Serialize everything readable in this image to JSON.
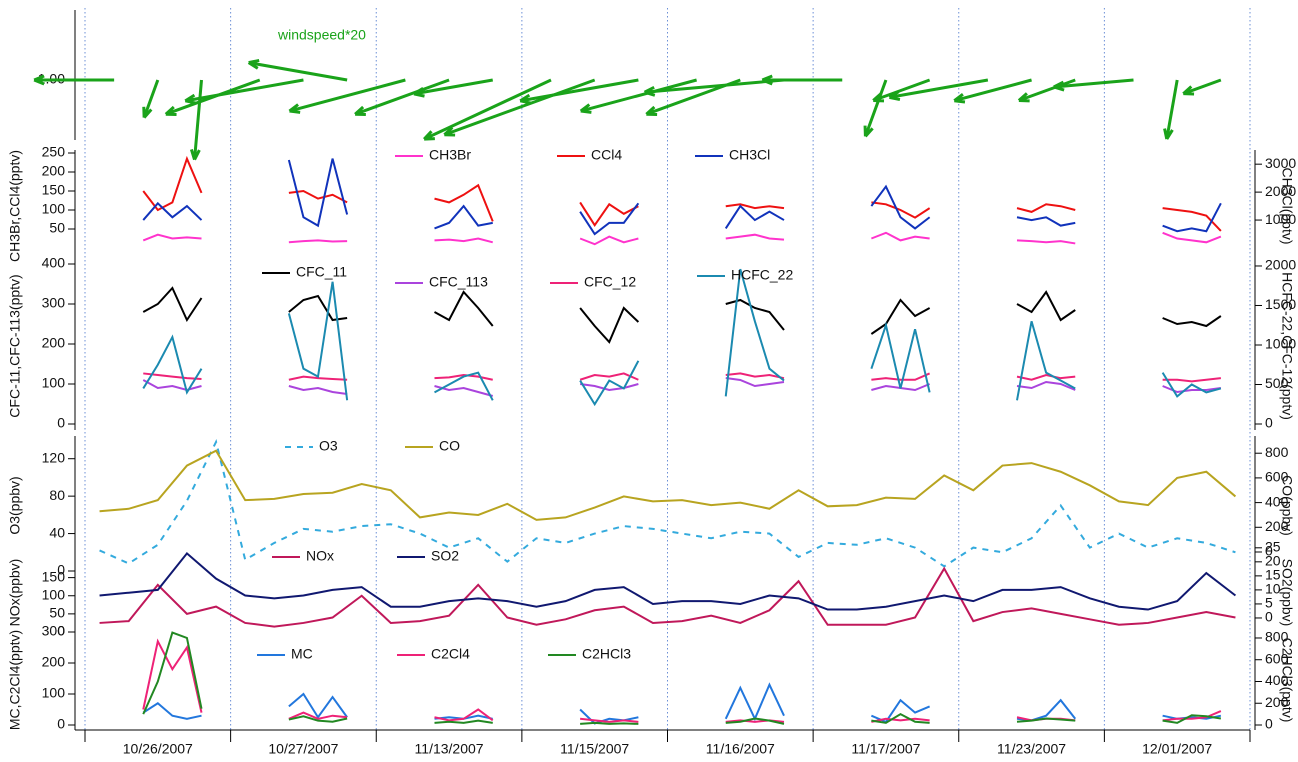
{
  "chart_data": [
    {
      "type": "vector",
      "annotation": "windspeed*20",
      "color": "#1aa31a",
      "x": [
        0.2,
        0.5,
        0.8,
        1.2,
        1.5,
        1.8,
        2.2,
        2.5,
        2.8,
        3.2,
        3.5,
        3.8,
        4.2,
        4.5,
        4.8,
        5.2,
        5.5,
        5.8,
        6.2,
        6.5,
        6.8,
        7.2,
        7.5,
        7.8
      ],
      "speed": [
        4,
        2,
        4,
        5,
        6,
        5,
        6,
        5,
        4,
        7,
        8,
        6,
        6,
        5,
        7,
        4,
        3,
        3,
        5,
        4,
        3,
        4,
        3,
        2
      ],
      "direction": [
        180,
        250,
        265,
        200,
        190,
        170,
        195,
        200,
        190,
        205,
        200,
        190,
        195,
        200,
        185,
        180,
        250,
        200,
        190,
        195,
        200,
        185,
        260,
        200
      ],
      "ylim": [
        0,
        2
      ],
      "yticks": [
        {
          "value": 1,
          "label": "1.00"
        }
      ]
    },
    {
      "type": "line",
      "ylabel": "CH3Br,CCl4(pptv)",
      "y2label": "CH3Cl(pptv)",
      "ylim": [
        0,
        250
      ],
      "yticks": [
        50,
        100,
        150,
        200,
        250
      ],
      "y2lim": [
        0,
        3400
      ],
      "y2ticks": [
        1000,
        2000,
        3000
      ],
      "x": [
        0.4,
        0.5,
        0.6,
        0.7,
        0.8,
        1,
        1.4,
        1.5,
        1.6,
        1.7,
        1.8,
        2,
        2.4,
        2.5,
        2.6,
        2.7,
        2.8,
        3,
        3.4,
        3.5,
        3.6,
        3.7,
        3.8,
        4,
        4.4,
        4.5,
        4.6,
        4.7,
        4.8,
        5,
        5.4,
        5.5,
        5.6,
        5.7,
        5.8,
        6,
        6.4,
        6.5,
        6.6,
        6.7,
        6.8,
        7,
        7.4,
        7.5,
        7.6,
        7.7,
        7.8
      ],
      "series": [
        {
          "name": "CH3Br",
          "color": "#ff33cc",
          "values": [
            20,
            35,
            25,
            28,
            25,
            null,
            15,
            18,
            20,
            17,
            18,
            null,
            20,
            22,
            18,
            25,
            15,
            null,
            25,
            10,
            30,
            15,
            25,
            null,
            25,
            30,
            35,
            25,
            22,
            null,
            25,
            40,
            20,
            30,
            25,
            null,
            20,
            18,
            15,
            18,
            12,
            null,
            40,
            25,
            20,
            15,
            30
          ]
        },
        {
          "name": "CCl4",
          "color": "#ee1111",
          "values": [
            150,
            100,
            120,
            235,
            145,
            null,
            145,
            150,
            130,
            140,
            120,
            null,
            130,
            120,
            140,
            165,
            70,
            null,
            120,
            60,
            115,
            90,
            110,
            null,
            110,
            115,
            105,
            110,
            105,
            null,
            120,
            115,
            100,
            80,
            105,
            null,
            105,
            95,
            115,
            110,
            100,
            null,
            105,
            100,
            95,
            85,
            45
          ]
        },
        {
          "name": "CH3Cl",
          "color": "#1133bb",
          "axis": "y2",
          "values": [
            1000,
            1600,
            1100,
            1500,
            1000,
            null,
            3150,
            1100,
            800,
            3200,
            1200,
            null,
            700,
            900,
            1500,
            800,
            900,
            null,
            1300,
            500,
            900,
            900,
            1600,
            null,
            700,
            1500,
            1000,
            1300,
            1000,
            null,
            1500,
            2200,
            1100,
            700,
            1100,
            null,
            1100,
            1000,
            1100,
            800,
            900,
            null,
            800,
            600,
            700,
            600,
            1600
          ]
        }
      ]
    },
    {
      "type": "line",
      "ylabel": "CFC-11,CFC-113(pptv)",
      "y2label": "HCFC-22,CFC-12(pptv)",
      "ylim": [
        0,
        400
      ],
      "yticks": [
        0,
        100,
        200,
        300,
        400
      ],
      "y2lim": [
        0,
        2025
      ],
      "y2ticks": [
        0,
        500,
        1000,
        1500,
        2000
      ],
      "x": [
        0.4,
        0.5,
        0.6,
        0.7,
        0.8,
        1,
        1.4,
        1.5,
        1.6,
        1.7,
        1.8,
        2,
        2.4,
        2.5,
        2.6,
        2.7,
        2.8,
        3,
        3.4,
        3.5,
        3.6,
        3.7,
        3.8,
        4,
        4.4,
        4.5,
        4.6,
        4.7,
        4.8,
        5,
        5.4,
        5.5,
        5.6,
        5.7,
        5.8,
        6,
        6.4,
        6.5,
        6.6,
        6.7,
        6.8,
        7,
        7.4,
        7.5,
        7.6,
        7.7,
        7.8
      ],
      "series": [
        {
          "name": "CFC_11",
          "color": "#000000",
          "values": [
            280,
            300,
            340,
            260,
            315,
            null,
            280,
            310,
            320,
            260,
            265,
            null,
            280,
            260,
            330,
            290,
            245,
            null,
            290,
            245,
            205,
            290,
            255,
            null,
            300,
            310,
            290,
            280,
            235,
            null,
            225,
            250,
            310,
            270,
            290,
            null,
            300,
            280,
            330,
            260,
            285,
            null,
            265,
            250,
            255,
            245,
            270
          ]
        },
        {
          "name": "CFC_113",
          "color": "#aa44dd",
          "values": [
            110,
            90,
            95,
            85,
            95,
            null,
            95,
            85,
            90,
            80,
            75,
            null,
            95,
            85,
            90,
            80,
            70,
            null,
            100,
            95,
            85,
            90,
            100,
            null,
            115,
            110,
            95,
            100,
            105,
            null,
            85,
            95,
            90,
            85,
            100,
            null,
            95,
            90,
            105,
            100,
            85,
            null,
            95,
            80,
            85,
            85,
            90
          ]
        },
        {
          "name": "CFC_12",
          "color": "#ee2277",
          "axis": "y2",
          "values": [
            640,
            620,
            600,
            580,
            570,
            null,
            560,
            600,
            580,
            570,
            560,
            null,
            580,
            590,
            620,
            600,
            560,
            null,
            560,
            620,
            600,
            640,
            560,
            null,
            620,
            640,
            600,
            620,
            580,
            null,
            560,
            580,
            560,
            560,
            640,
            null,
            600,
            560,
            620,
            580,
            600,
            null,
            560,
            560,
            540,
            560,
            580
          ]
        },
        {
          "name": "HCFC_22",
          "color": "#1b8ab0",
          "axis": "y2",
          "values": [
            450,
            750,
            1100,
            400,
            700,
            null,
            1400,
            700,
            600,
            1800,
            300,
            null,
            400,
            500,
            600,
            650,
            300,
            null,
            550,
            250,
            550,
            450,
            800,
            null,
            350,
            1960,
            1300,
            700,
            550,
            null,
            700,
            1250,
            450,
            1200,
            400,
            null,
            300,
            1300,
            650,
            550,
            450,
            null,
            650,
            350,
            500,
            400,
            450
          ]
        }
      ]
    },
    {
      "type": "line",
      "ylabel": "O3(ppbv)",
      "y2label": "CO(ppbv)",
      "ylim": [
        0,
        140
      ],
      "yticks": [
        0,
        40,
        80,
        120
      ],
      "y2lim": [
        -154,
        907
      ],
      "y2ticks": [
        0,
        200,
        400,
        600,
        800
      ],
      "x": [
        0.1,
        0.3,
        0.5,
        0.7,
        0.9,
        1.1,
        1.3,
        1.5,
        1.7,
        1.9,
        2.1,
        2.3,
        2.5,
        2.7,
        2.9,
        3.1,
        3.3,
        3.5,
        3.7,
        3.9,
        4.1,
        4.3,
        4.5,
        4.7,
        4.9,
        5.1,
        5.3,
        5.5,
        5.7,
        5.9,
        6.1,
        6.3,
        6.5,
        6.7,
        6.9,
        7.1,
        7.3,
        7.5,
        7.7,
        7.9
      ],
      "series": [
        {
          "name": "O3",
          "color": "#33aadd",
          "dash": true,
          "values": [
            22,
            8,
            28,
            75,
            138,
            12,
            30,
            45,
            42,
            48,
            50,
            40,
            25,
            35,
            10,
            35,
            30,
            40,
            48,
            45,
            40,
            35,
            42,
            40,
            15,
            30,
            28,
            35,
            25,
            5,
            25,
            20,
            35,
            70,
            25,
            40,
            25,
            35,
            30,
            20
          ]
        },
        {
          "name": "CO",
          "color": "#b8a420",
          "axis": "y2",
          "values": [
            330,
            350,
            420,
            700,
            820,
            420,
            430,
            470,
            480,
            550,
            500,
            280,
            320,
            300,
            390,
            260,
            280,
            360,
            450,
            410,
            420,
            380,
            400,
            350,
            500,
            370,
            380,
            440,
            430,
            620,
            500,
            700,
            720,
            650,
            540,
            410,
            380,
            600,
            650,
            450
          ]
        }
      ]
    },
    {
      "type": "line",
      "ylabel": "NOx(ppbv)",
      "y2label": "SO2(ppbv)",
      "ylim": [
        0,
        240
      ],
      "yticks": [
        0,
        50,
        100,
        150
      ],
      "y2lim": [
        -5,
        26
      ],
      "y2ticks": [
        0,
        5,
        10,
        15,
        20,
        25
      ],
      "x": [
        0.1,
        0.3,
        0.5,
        0.7,
        0.9,
        1.1,
        1.3,
        1.5,
        1.7,
        1.9,
        2.1,
        2.3,
        2.5,
        2.7,
        2.9,
        3.1,
        3.3,
        3.5,
        3.7,
        3.9,
        4.1,
        4.3,
        4.5,
        4.7,
        4.9,
        5.1,
        5.3,
        5.5,
        5.7,
        5.9,
        6.1,
        6.3,
        6.5,
        6.7,
        6.9,
        7.1,
        7.3,
        7.5,
        7.7,
        7.9
      ],
      "series": [
        {
          "name": "NOx",
          "color": "#c0185a",
          "values": [
            25,
            30,
            130,
            50,
            70,
            25,
            15,
            25,
            40,
            100,
            25,
            30,
            45,
            130,
            40,
            20,
            35,
            60,
            70,
            25,
            30,
            45,
            25,
            60,
            140,
            20,
            20,
            20,
            40,
            175,
            30,
            55,
            65,
            50,
            35,
            20,
            25,
            40,
            55,
            40
          ]
        },
        {
          "name": "SO2",
          "color": "#101870",
          "axis": "y2",
          "values": [
            8,
            9,
            10,
            23,
            14,
            8,
            7,
            8,
            10,
            11,
            4,
            4,
            6,
            7,
            6,
            4,
            6,
            10,
            11,
            5,
            6,
            6,
            5,
            8,
            7,
            3,
            3,
            4,
            6,
            8,
            6,
            10,
            10,
            11,
            7,
            4,
            3,
            6,
            16,
            8
          ]
        }
      ]
    },
    {
      "type": "line",
      "ylabel": "MC,C2Cl4(pptv)",
      "y2label": "C2HCl3(pptv)",
      "ylim": [
        0,
        300
      ],
      "yticks": [
        0,
        100,
        200,
        300
      ],
      "y2lim": [
        0,
        855
      ],
      "y2ticks": [
        0,
        200,
        400,
        600,
        800
      ],
      "xlim": [
        0,
        8
      ],
      "categories": [
        "10/26/2007",
        "10/27/2007",
        "11/13/2007",
        "11/15/2007",
        "11/16/2007",
        "11/17/2007",
        "11/23/2007",
        "12/01/2007"
      ],
      "x": [
        0.4,
        0.5,
        0.6,
        0.7,
        0.8,
        1,
        1.4,
        1.5,
        1.6,
        1.7,
        1.8,
        2,
        2.4,
        2.5,
        2.6,
        2.7,
        2.8,
        3,
        3.4,
        3.5,
        3.6,
        3.7,
        3.8,
        4,
        4.4,
        4.5,
        4.6,
        4.7,
        4.8,
        5,
        5.4,
        5.5,
        5.6,
        5.7,
        5.8,
        6,
        6.4,
        6.5,
        6.6,
        6.7,
        6.8,
        7,
        7.4,
        7.5,
        7.6,
        7.7,
        7.8
      ],
      "series": [
        {
          "name": "MC",
          "color": "#2277dd",
          "values": [
            40,
            70,
            30,
            20,
            30,
            null,
            60,
            100,
            25,
            90,
            25,
            null,
            20,
            25,
            20,
            30,
            20,
            null,
            50,
            5,
            20,
            15,
            25,
            null,
            20,
            120,
            20,
            130,
            30,
            null,
            30,
            10,
            80,
            40,
            60,
            null,
            20,
            15,
            30,
            80,
            20,
            null,
            30,
            20,
            25,
            20,
            30
          ]
        },
        {
          "name": "C2Cl4",
          "color": "#ee2277",
          "values": [
            50,
            270,
            180,
            250,
            40,
            null,
            20,
            40,
            20,
            30,
            25,
            null,
            25,
            15,
            20,
            50,
            15,
            null,
            20,
            15,
            10,
            15,
            10,
            null,
            10,
            15,
            10,
            15,
            10,
            null,
            10,
            20,
            15,
            20,
            15,
            null,
            25,
            15,
            20,
            20,
            15,
            null,
            15,
            20,
            20,
            25,
            45
          ]
        },
        {
          "name": "C2HCl3",
          "color": "#228822",
          "axis": "y2",
          "values": [
            100,
            400,
            850,
            800,
            150,
            null,
            50,
            80,
            40,
            30,
            60,
            null,
            20,
            30,
            20,
            40,
            20,
            null,
            10,
            20,
            10,
            15,
            10,
            null,
            20,
            30,
            60,
            40,
            10,
            null,
            40,
            20,
            100,
            30,
            20,
            null,
            30,
            40,
            60,
            50,
            40,
            null,
            40,
            20,
            90,
            80,
            60
          ]
        }
      ]
    }
  ]
}
